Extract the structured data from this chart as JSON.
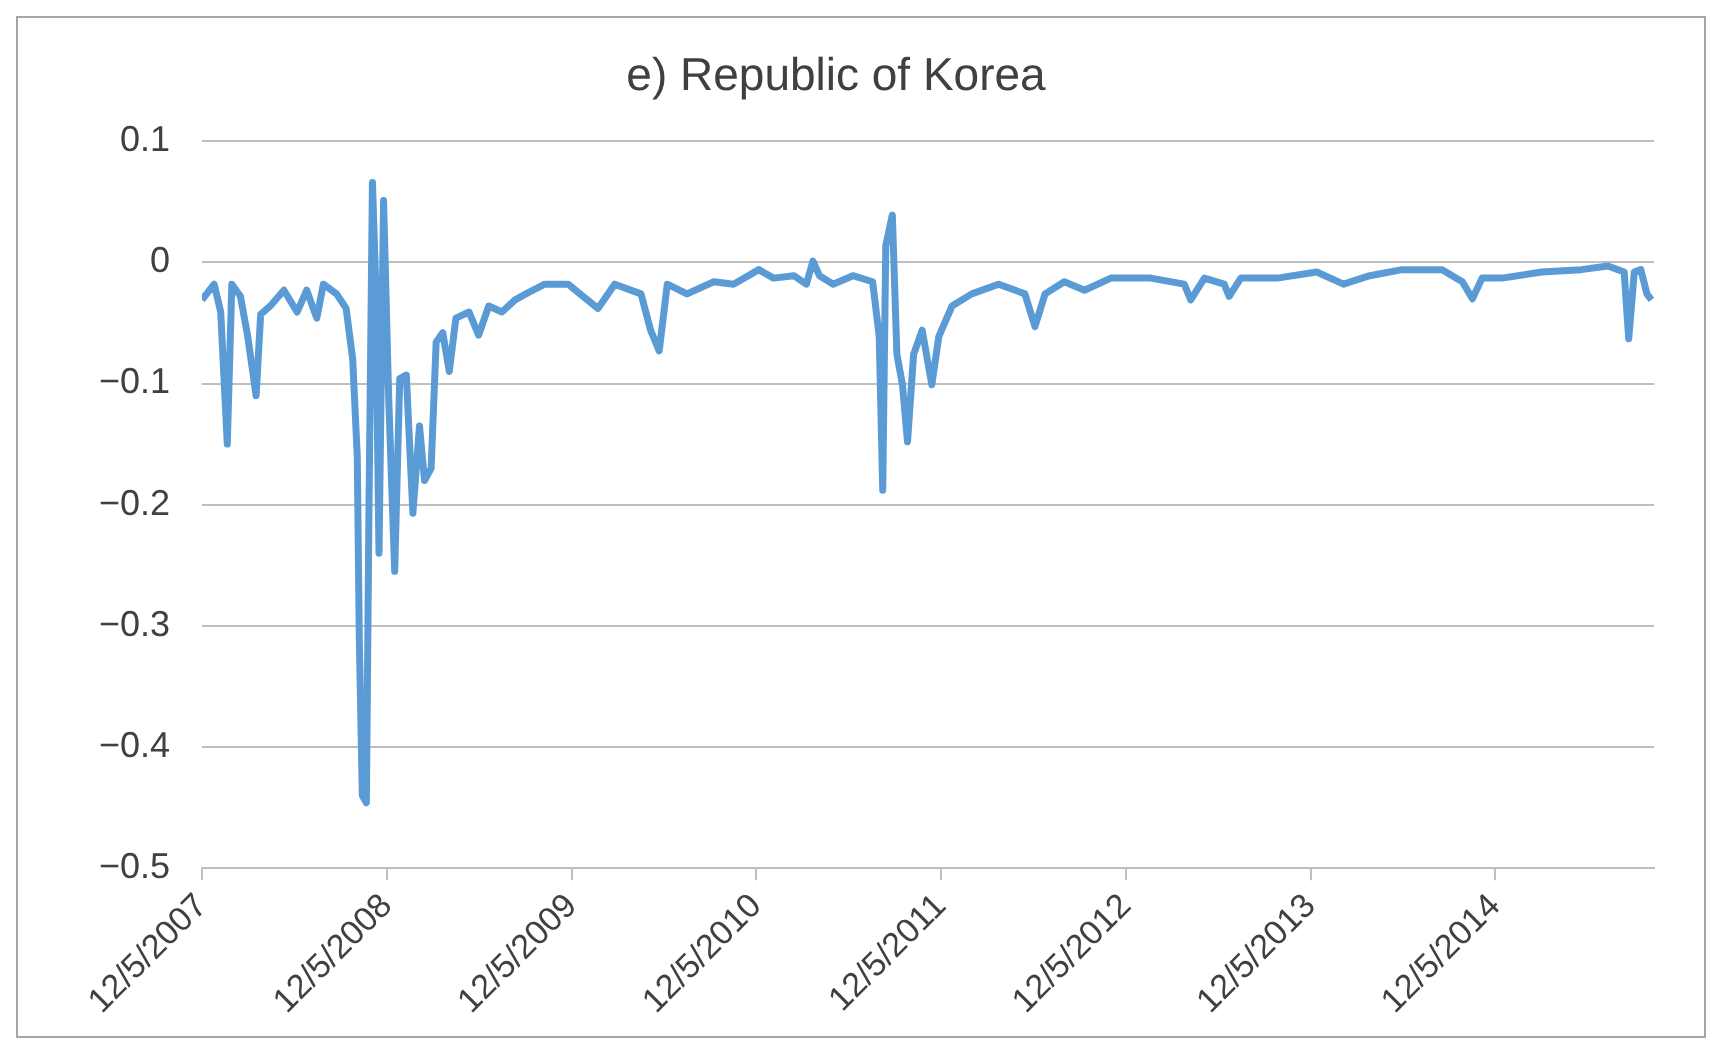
{
  "chart_data": {
    "type": "line",
    "title": "e) Republic of Korea",
    "color": "#5b9bd5",
    "grid": "y",
    "legend": false,
    "x": [
      "2007-12-05",
      "2007-12-29",
      "2008-01-11",
      "2008-01-24",
      "2008-02-02",
      "2008-02-19",
      "2008-03-04",
      "2008-03-21",
      "2008-03-30",
      "2008-04-18",
      "2008-05-15",
      "2008-06-10",
      "2008-06-29",
      "2008-07-19",
      "2008-08-01",
      "2008-08-27",
      "2008-09-15",
      "2008-09-28",
      "2008-10-07",
      "2008-10-11",
      "2008-10-17",
      "2008-10-25",
      "2008-10-30",
      "2008-11-06",
      "2008-11-12",
      "2008-11-19",
      "2008-11-28",
      "2008-12-08",
      "2008-12-20",
      "2008-12-30",
      "2009-01-12",
      "2009-01-25",
      "2009-02-07",
      "2009-02-17",
      "2009-03-02",
      "2009-03-12",
      "2009-03-25",
      "2009-04-07",
      "2009-04-20",
      "2009-05-16",
      "2009-06-04",
      "2009-06-24",
      "2009-07-20",
      "2009-08-15",
      "2009-09-10",
      "2009-10-13",
      "2009-11-28",
      "2010-01-26",
      "2010-02-28",
      "2010-04-21",
      "2010-05-10",
      "2010-05-27",
      "2010-06-12",
      "2010-07-21",
      "2010-09-12",
      "2010-10-21",
      "2010-12-10",
      "2011-01-08",
      "2011-02-17",
      "2011-03-14",
      "2011-03-27",
      "2011-04-09",
      "2011-05-06",
      "2011-06-14",
      "2011-07-23",
      "2011-08-05",
      "2011-08-12",
      "2011-08-18",
      "2011-08-31",
      "2011-09-09",
      "2011-09-20",
      "2011-09-30",
      "2011-10-12",
      "2011-10-29",
      "2011-11-17",
      "2011-12-01",
      "2011-12-27",
      "2012-02-04",
      "2012-03-28",
      "2012-05-19",
      "2012-06-08",
      "2012-06-28",
      "2012-08-05",
      "2012-09-14",
      "2012-11-05",
      "2012-12-15",
      "2013-01-23",
      "2013-03-30",
      "2013-04-12",
      "2013-05-09",
      "2013-06-17",
      "2013-06-27",
      "2013-07-20",
      "2013-09-30",
      "2013-12-17",
      "2014-02-08",
      "2014-04-01",
      "2014-06-04",
      "2014-08-22",
      "2014-10-01",
      "2014-10-21",
      "2014-11-09",
      "2014-12-18",
      "2015-03-07",
      "2015-05-24",
      "2015-07-16",
      "2015-08-17",
      "2015-08-26",
      "2015-09-06",
      "2015-09-19",
      "2015-10-01",
      "2015-10-10"
    ],
    "values": [
      -0.031,
      -0.018,
      -0.041,
      -0.15,
      -0.018,
      -0.028,
      -0.06,
      -0.11,
      -0.043,
      -0.036,
      -0.023,
      -0.041,
      -0.023,
      -0.046,
      -0.018,
      -0.026,
      -0.038,
      -0.08,
      -0.16,
      -0.31,
      -0.44,
      -0.446,
      -0.21,
      0.066,
      -0.011,
      -0.24,
      0.051,
      -0.11,
      -0.255,
      -0.096,
      -0.093,
      -0.207,
      -0.135,
      -0.18,
      -0.17,
      -0.066,
      -0.058,
      -0.09,
      -0.046,
      -0.041,
      -0.06,
      -0.036,
      -0.041,
      -0.031,
      -0.025,
      -0.018,
      -0.018,
      -0.038,
      -0.018,
      -0.026,
      -0.056,
      -0.073,
      -0.018,
      -0.026,
      -0.016,
      -0.018,
      -0.006,
      -0.013,
      -0.011,
      -0.018,
      0.001,
      -0.011,
      -0.018,
      -0.011,
      -0.016,
      -0.061,
      -0.188,
      0.014,
      0.039,
      -0.076,
      -0.101,
      -0.148,
      -0.076,
      -0.056,
      -0.101,
      -0.061,
      -0.036,
      -0.026,
      -0.018,
      -0.026,
      -0.053,
      -0.026,
      -0.016,
      -0.023,
      -0.013,
      -0.013,
      -0.013,
      -0.018,
      -0.031,
      -0.013,
      -0.018,
      -0.028,
      -0.013,
      -0.013,
      -0.008,
      -0.018,
      -0.011,
      -0.006,
      -0.006,
      -0.016,
      -0.03,
      -0.013,
      -0.013,
      -0.008,
      -0.006,
      -0.003,
      -0.008,
      -0.063,
      -0.008,
      -0.006,
      -0.026,
      -0.031
    ],
    "xlim": [
      "2007-12-05",
      "2015-10-15"
    ],
    "xticks": [
      {
        "value": "2007-12-05",
        "label": "12/5/2007"
      },
      {
        "value": "2008-12-05",
        "label": "12/5/2008"
      },
      {
        "value": "2009-12-05",
        "label": "12/5/2009"
      },
      {
        "value": "2010-12-05",
        "label": "12/5/2010"
      },
      {
        "value": "2011-12-05",
        "label": "12/5/2011"
      },
      {
        "value": "2012-12-05",
        "label": "12/5/2012"
      },
      {
        "value": "2013-12-05",
        "label": "12/5/2013"
      },
      {
        "value": "2014-12-05",
        "label": "12/5/2014"
      }
    ],
    "ylim": [
      -0.5,
      0.1
    ],
    "yticks": [
      0.1,
      0,
      {
        "value": -0.1,
        "label": "−0.1"
      },
      {
        "value": -0.2,
        "label": "−0.2"
      },
      {
        "value": -0.3,
        "label": "−0.3"
      },
      {
        "value": -0.4,
        "label": "−0.4"
      },
      {
        "value": -0.5,
        "label": "−0.5"
      }
    ]
  }
}
